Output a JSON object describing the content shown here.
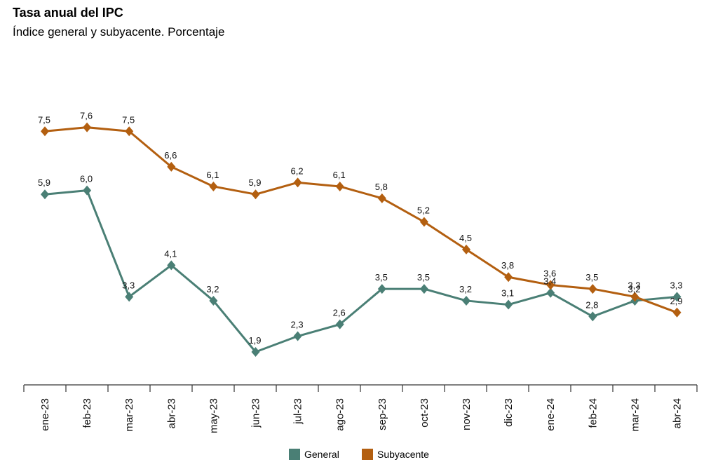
{
  "title": "Tasa anual del IPC",
  "subtitle": "Índice general y subyacente. Porcentaje",
  "colors": {
    "general": "#4a7f75",
    "subyacente": "#b35f10",
    "axis": "#333333"
  },
  "chart_data": {
    "type": "line",
    "title": "Tasa anual del IPC",
    "subtitle": "Índice general y subyacente. Porcentaje",
    "categories": [
      "ene-23",
      "feb-23",
      "mar-23",
      "abr-23",
      "may-23",
      "jun-23",
      "jul-23",
      "ago-23",
      "sep-23",
      "oct-23",
      "nov-23",
      "dic-23",
      "ene-24",
      "feb-24",
      "mar-24",
      "abr-24"
    ],
    "series": [
      {
        "name": "General",
        "values": [
          5.9,
          6.0,
          3.3,
          4.1,
          3.2,
          1.9,
          2.3,
          2.6,
          3.5,
          3.5,
          3.2,
          3.1,
          3.4,
          2.8,
          3.2,
          3.3
        ],
        "labels": [
          "5,9",
          "6,0",
          "3,3",
          "4,1",
          "3,2",
          "1,9",
          "2,3",
          "2,6",
          "3,5",
          "3,5",
          "3,2",
          "3,1",
          "3,4",
          "2,8",
          "3,2",
          "3,3"
        ]
      },
      {
        "name": "Subyacente",
        "values": [
          7.5,
          7.6,
          7.5,
          6.6,
          6.1,
          5.9,
          6.2,
          6.1,
          5.8,
          5.2,
          4.5,
          3.8,
          3.6,
          3.5,
          3.3,
          2.9
        ],
        "labels": [
          "7,5",
          "7,6",
          "7,5",
          "6,6",
          "6,1",
          "5,9",
          "6,2",
          "6,1",
          "5,8",
          "5,2",
          "4,5",
          "3,8",
          "3,6",
          "3,5",
          "3,3",
          "2,9"
        ]
      }
    ],
    "ylim": [
      0,
      9
    ],
    "grid": false,
    "legend": "bottom-center"
  }
}
